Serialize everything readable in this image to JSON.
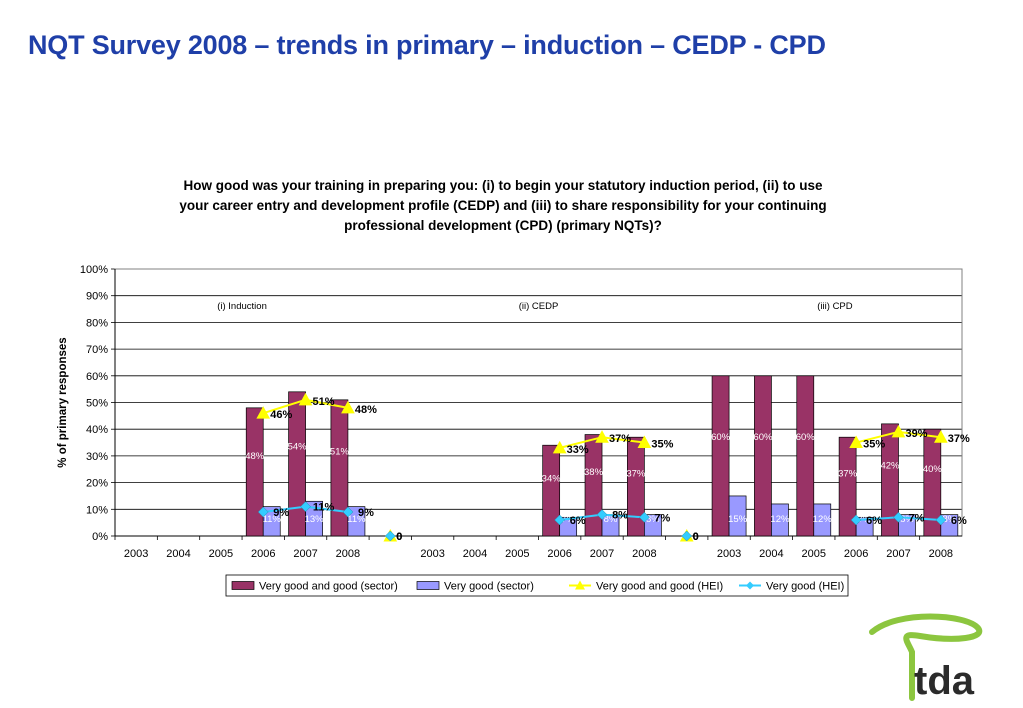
{
  "slide": {
    "title": "NQT Survey 2008 – trends in primary – induction – CEDP - CPD",
    "logo_text": "tda",
    "logo_colors": {
      "swoosh": "#8cc63f",
      "text": "#2b2b2b"
    }
  },
  "chart_data": {
    "type": "bar",
    "title": "How good was your training in preparing you: (i) to begin your statutory induction period, (ii) to use your career entry and development profile (CEDP) and (iii) to share responsibility for your continuing professional development (CPD) (primary NQTs)?",
    "title_lines": [
      "How good was your training in preparing you: (i) to begin your statutory induction period, (ii) to use",
      "your career entry and development profile (CEDP) and (iii) to share responsibility for your continuing",
      "professional development (CPD) (primary NQTs)?"
    ],
    "ylabel": "% of primary responses",
    "xlabel": "",
    "ylim": [
      0,
      100
    ],
    "yticks": [
      "0%",
      "10%",
      "20%",
      "30%",
      "40%",
      "50%",
      "60%",
      "70%",
      "80%",
      "90%",
      "100%"
    ],
    "grid": true,
    "legend_position": "bottom",
    "groups": [
      "(i) Induction",
      "(ii) CEDP",
      "(iii) CPD"
    ],
    "categories": [
      "2003",
      "2004",
      "2005",
      "2006",
      "2007",
      "2008",
      "",
      "2003",
      "2004",
      "2005",
      "2006",
      "2007",
      "2008",
      "",
      "2003",
      "2004",
      "2005",
      "2006",
      "2007",
      "2008"
    ],
    "series": [
      {
        "name": "Very good and good (sector)",
        "kind": "bar",
        "color": "#993366",
        "values": [
          null,
          null,
          null,
          48,
          54,
          51,
          null,
          null,
          null,
          null,
          34,
          38,
          37,
          null,
          60,
          60,
          60,
          37,
          42,
          40
        ],
        "labels": [
          null,
          null,
          null,
          "48%",
          "54%",
          "51%",
          null,
          null,
          null,
          null,
          "34%",
          "38%",
          "37%",
          null,
          "60%",
          "60%",
          "60%",
          "37%",
          "42%",
          "40%"
        ]
      },
      {
        "name": "Very good (sector)",
        "kind": "bar",
        "color": "#9999ff",
        "values": [
          null,
          null,
          null,
          11,
          13,
          11,
          null,
          null,
          null,
          null,
          7,
          8,
          8,
          null,
          15,
          12,
          12,
          7,
          8,
          8
        ],
        "labels": [
          null,
          null,
          null,
          "11%",
          "13%",
          "11%",
          null,
          null,
          null,
          null,
          "7%",
          "8%",
          "8%",
          null,
          "15%",
          "12%",
          "12%",
          "7%",
          "8%",
          "8%"
        ]
      },
      {
        "name": "Very good and good (HEI)",
        "kind": "line",
        "color": "#ffff00",
        "values": [
          null,
          null,
          null,
          46,
          51,
          48,
          0,
          null,
          null,
          null,
          33,
          37,
          35,
          0,
          null,
          null,
          null,
          35,
          39,
          37
        ],
        "labels": [
          null,
          null,
          null,
          "46%",
          "51%",
          "48%",
          "0",
          null,
          null,
          null,
          "33%",
          "37%",
          "35%",
          "0",
          null,
          null,
          null,
          "35%",
          "39%",
          "37%"
        ]
      },
      {
        "name": "Very good (HEI)",
        "kind": "line",
        "color": "#33ccff",
        "values": [
          null,
          null,
          null,
          9,
          11,
          9,
          0,
          null,
          null,
          null,
          6,
          8,
          7,
          0,
          null,
          null,
          null,
          6,
          7,
          6
        ],
        "labels": [
          null,
          null,
          null,
          "9%",
          "11%",
          "9%",
          "0",
          null,
          null,
          null,
          "6%",
          "8%",
          "7%",
          "0",
          null,
          null,
          null,
          "6%",
          "7%",
          "6%"
        ]
      }
    ]
  }
}
